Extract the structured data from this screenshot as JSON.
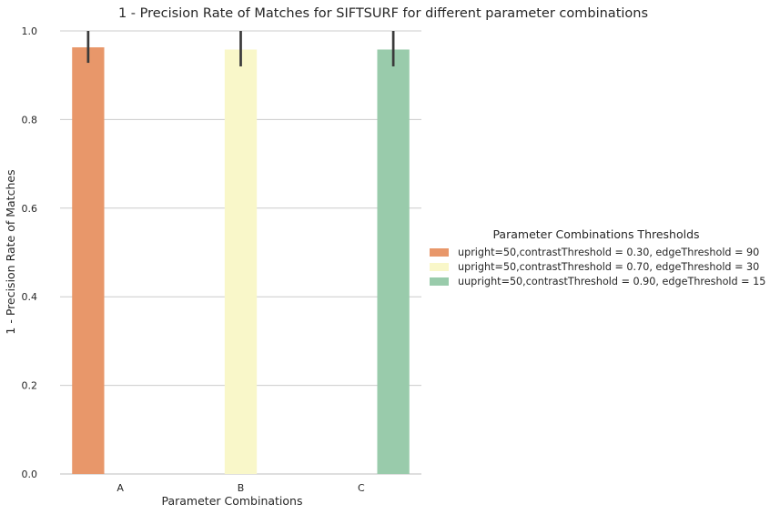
{
  "chart_data": {
    "type": "bar",
    "title": "1 - Precision Rate of Matches for SIFTSURF for different parameter combinations",
    "xlabel": "Parameter Combinations",
    "ylabel": "1 - Precision Rate of Matches",
    "categories": [
      "A",
      "B",
      "C"
    ],
    "ylim": [
      0,
      1.0
    ],
    "yticks": [
      "0.0",
      "0.2",
      "0.4",
      "0.6",
      "0.8",
      "1.0"
    ],
    "grid": "horizontal",
    "legend": {
      "title": "Parameter Combinations Thresholds",
      "placement": "right"
    },
    "series": [
      {
        "name": "upright=50,contrastThreshold = 0.30, edgeThreshold = 90",
        "color": "#e8976a",
        "values": [
          0.963,
          null,
          null
        ],
        "err_low": [
          0.928,
          null,
          null
        ],
        "err_high": [
          1.0,
          null,
          null
        ]
      },
      {
        "name": "upright=50,contrastThreshold = 0.70, edgeThreshold = 30",
        "color": "#f9f7c9",
        "values": [
          null,
          0.958,
          null
        ],
        "err_low": [
          null,
          0.92,
          null
        ],
        "err_high": [
          null,
          1.0,
          null
        ]
      },
      {
        "name": "uupright=50,contrastThreshold = 0.90, edgeThreshold = 15",
        "color": "#99cbab",
        "values": [
          null,
          null,
          0.958
        ],
        "err_low": [
          null,
          null,
          0.92
        ],
        "err_high": [
          null,
          null,
          1.0
        ]
      }
    ]
  }
}
